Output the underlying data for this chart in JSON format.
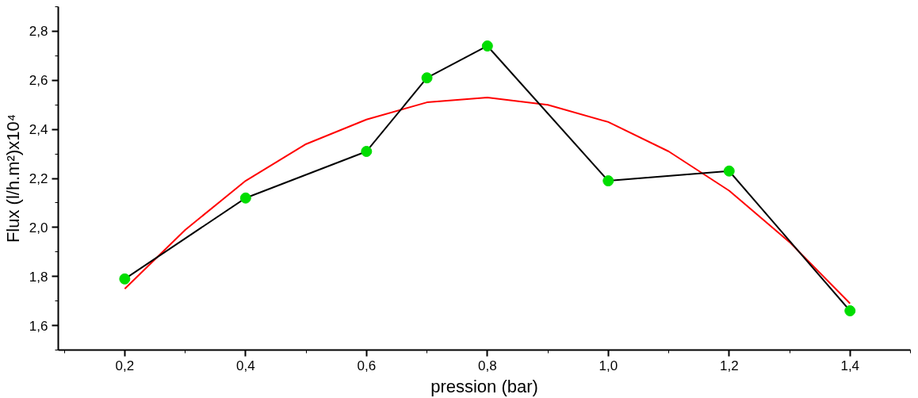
{
  "chart_data": {
    "type": "line",
    "xlabel": "pression (bar)",
    "ylabel": "Flux (l/h.m²)x10⁴",
    "xlim": [
      0.09,
      1.5
    ],
    "ylim": [
      1.5,
      2.9
    ],
    "xticks": [
      {
        "value": 0.2,
        "label": "0,2"
      },
      {
        "value": 0.4,
        "label": "0,4"
      },
      {
        "value": 0.6,
        "label": "0,6"
      },
      {
        "value": 0.8,
        "label": "0,8"
      },
      {
        "value": 1.0,
        "label": "1,0"
      },
      {
        "value": 1.2,
        "label": "1,2"
      },
      {
        "value": 1.4,
        "label": "1,4"
      }
    ],
    "yticks": [
      {
        "value": 1.6,
        "label": "1,6"
      },
      {
        "value": 1.8,
        "label": "1,8"
      },
      {
        "value": 2.0,
        "label": "2,0"
      },
      {
        "value": 2.2,
        "label": "2,2"
      },
      {
        "value": 2.4,
        "label": "2,4"
      },
      {
        "value": 2.6,
        "label": "2,6"
      },
      {
        "value": 2.8,
        "label": "2,8"
      }
    ],
    "grid": false,
    "series": [
      {
        "color": "#ff0000",
        "marker": "none",
        "x": [
          0.2,
          0.3,
          0.4,
          0.5,
          0.6,
          0.7,
          0.8,
          0.9,
          1.0,
          1.1,
          1.2,
          1.3,
          1.4
        ],
        "values": [
          1.75,
          1.99,
          2.19,
          2.34,
          2.44,
          2.51,
          2.53,
          2.5,
          2.43,
          2.31,
          2.15,
          1.94,
          1.69
        ]
      },
      {
        "color": "#000000",
        "marker": "circle",
        "colors": [
          "#00dd00",
          "#00dd00",
          "#00dd00",
          "#00dd00",
          "#00dd00",
          "#00dd00",
          "#00dd00",
          "#00dd00"
        ],
        "x": [
          0.2,
          0.4,
          0.6,
          0.7,
          0.8,
          1.0,
          1.2,
          1.4
        ],
        "values": [
          1.79,
          2.12,
          2.31,
          2.61,
          2.74,
          2.19,
          2.23,
          1.66
        ]
      }
    ]
  }
}
